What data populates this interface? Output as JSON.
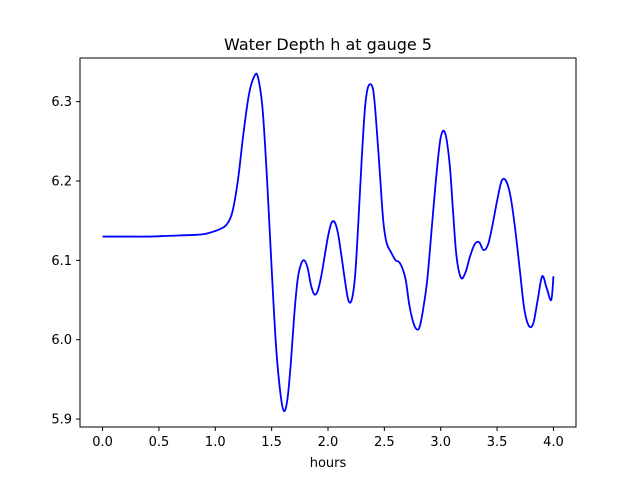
{
  "chart_data": {
    "type": "line",
    "title": "Water Depth h at gauge 5",
    "xlabel": "hours",
    "ylabel": "",
    "xlim": [
      -0.2,
      4.2
    ],
    "ylim": [
      5.89,
      6.355
    ],
    "xticks": [
      0.0,
      0.5,
      1.0,
      1.5,
      2.0,
      2.5,
      3.0,
      3.5,
      4.0
    ],
    "xtick_labels": [
      "0.0",
      "0.5",
      "1.0",
      "1.5",
      "2.0",
      "2.5",
      "3.0",
      "3.5",
      "4.0"
    ],
    "yticks": [
      5.9,
      6.0,
      6.1,
      6.2,
      6.3
    ],
    "ytick_labels": [
      "5.9",
      "6.0",
      "6.1",
      "6.2",
      "6.3"
    ],
    "grid": false,
    "line_color": "#0000ff",
    "series": [
      {
        "name": "",
        "x": [
          0.0,
          0.2,
          0.4,
          0.6,
          0.8,
          0.9,
          1.0,
          1.05,
          1.1,
          1.15,
          1.2,
          1.25,
          1.3,
          1.35,
          1.38,
          1.42,
          1.46,
          1.5,
          1.54,
          1.58,
          1.61,
          1.64,
          1.67,
          1.7,
          1.73,
          1.76,
          1.79,
          1.82,
          1.85,
          1.88,
          1.91,
          1.94,
          1.97,
          2.0,
          2.03,
          2.06,
          2.09,
          2.12,
          2.15,
          2.18,
          2.21,
          2.24,
          2.27,
          2.3,
          2.33,
          2.36,
          2.4,
          2.43,
          2.46,
          2.49,
          2.52,
          2.56,
          2.6,
          2.63,
          2.66,
          2.69,
          2.72,
          2.75,
          2.78,
          2.81,
          2.84,
          2.88,
          2.92,
          2.96,
          3.0,
          3.04,
          3.08,
          3.11,
          3.14,
          3.18,
          3.22,
          3.26,
          3.3,
          3.34,
          3.38,
          3.42,
          3.46,
          3.5,
          3.54,
          3.58,
          3.62,
          3.66,
          3.7,
          3.74,
          3.78,
          3.82,
          3.86,
          3.9,
          3.94,
          3.98,
          4.0
        ],
        "y": [
          6.13,
          6.13,
          6.13,
          6.131,
          6.132,
          6.133,
          6.137,
          6.14,
          6.145,
          6.16,
          6.2,
          6.26,
          6.31,
          6.333,
          6.33,
          6.29,
          6.2,
          6.09,
          5.99,
          5.93,
          5.91,
          5.925,
          5.97,
          6.03,
          6.075,
          6.095,
          6.1,
          6.09,
          6.068,
          6.057,
          6.062,
          6.08,
          6.105,
          6.13,
          6.147,
          6.148,
          6.133,
          6.105,
          6.075,
          6.05,
          6.05,
          6.08,
          6.15,
          6.23,
          6.295,
          6.32,
          6.315,
          6.27,
          6.21,
          6.15,
          6.122,
          6.11,
          6.1,
          6.098,
          6.09,
          6.075,
          6.045,
          6.025,
          6.014,
          6.015,
          6.035,
          6.075,
          6.14,
          6.205,
          6.255,
          6.26,
          6.22,
          6.16,
          6.105,
          6.078,
          6.085,
          6.105,
          6.12,
          6.123,
          6.113,
          6.12,
          6.145,
          6.175,
          6.2,
          6.2,
          6.18,
          6.14,
          6.09,
          6.04,
          6.018,
          6.02,
          6.05,
          6.08,
          6.065,
          6.05,
          6.08
        ]
      }
    ]
  }
}
